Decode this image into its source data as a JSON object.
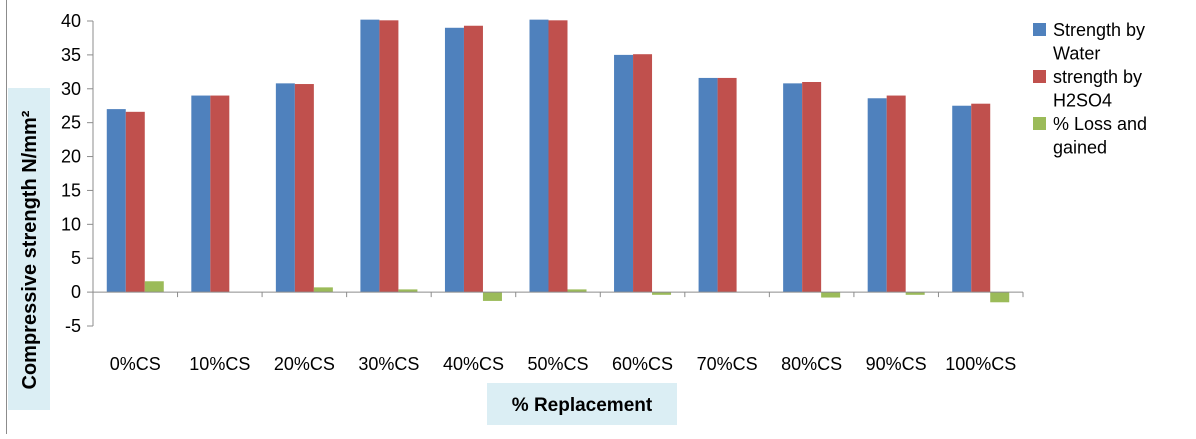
{
  "chart_data": {
    "type": "bar",
    "title": "",
    "xlabel": "% Replacement",
    "ylabel": "Compressive strength N/mm²",
    "categories": [
      "0%CS",
      "10%CS",
      "20%CS",
      "30%CS",
      "40%CS",
      "50%CS",
      "60%CS",
      "70%CS",
      "80%CS",
      "90%CS",
      "100%CS"
    ],
    "series": [
      {
        "name": "Strength by Water",
        "color": "#4f81bd",
        "values": [
          27.0,
          29.0,
          30.8,
          40.2,
          39.0,
          40.2,
          35.0,
          31.6,
          30.8,
          28.6,
          27.5
        ]
      },
      {
        "name": "strength by H2SO4",
        "color": "#c0504d",
        "values": [
          26.6,
          29.0,
          30.7,
          40.1,
          39.3,
          40.1,
          35.1,
          31.6,
          31.0,
          29.0,
          27.8
        ]
      },
      {
        "name": "% Loss and gained",
        "color": "#9bbb59",
        "values": [
          1.6,
          0.0,
          0.7,
          0.4,
          -1.3,
          0.4,
          -0.4,
          0.0,
          -0.8,
          -0.4,
          -1.5
        ]
      }
    ],
    "ylim": [
      -5,
      40
    ],
    "yticks": [
      -5,
      0,
      5,
      10,
      15,
      20,
      25,
      30,
      35,
      40
    ],
    "grid": false,
    "legend_position": "right",
    "legend_lines": [
      [
        "Strength by",
        "Water"
      ],
      [
        "strength by",
        "H2SO4"
      ],
      [
        "% Loss and",
        "gained"
      ]
    ],
    "axis_title_background": "#dbeef4"
  }
}
